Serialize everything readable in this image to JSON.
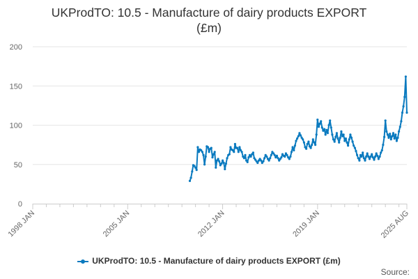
{
  "chart_data": {
    "type": "line",
    "title": "UKProdTO: 10.5 - Manufacture of dairy products EXPORT (£m)",
    "title_lines": [
      "UKProdTO: 10.5 - Manufacture of dairy products EXPORT",
      "(£m)"
    ],
    "x_ticks": [
      "1998 JAN",
      "2005 JAN",
      "2012 JAN",
      "2019 JAN",
      "2025 AUG"
    ],
    "xlim": [
      "1998-01",
      "2025-08"
    ],
    "ylim": [
      0,
      200
    ],
    "y_ticks": [
      0,
      50,
      100,
      150,
      200
    ],
    "grid": "horizontal",
    "legend_position": "bottom-center",
    "series": [
      {
        "name": "UKProdTO: 10.5 - Manufacture of dairy products EXPORT (£m)",
        "color": "#0a7abf",
        "points": [
          [
            "2009-08",
            29
          ],
          [
            "2009-09",
            33
          ],
          [
            "2009-10",
            41
          ],
          [
            "2009-11",
            49
          ],
          [
            "2009-12",
            48
          ],
          [
            "2010-01",
            46
          ],
          [
            "2010-02",
            43
          ],
          [
            "2010-03",
            72
          ],
          [
            "2010-04",
            66
          ],
          [
            "2010-05",
            69
          ],
          [
            "2010-06",
            68
          ],
          [
            "2010-07",
            66
          ],
          [
            "2010-08",
            62
          ],
          [
            "2010-09",
            50
          ],
          [
            "2010-10",
            60
          ],
          [
            "2010-11",
            73
          ],
          [
            "2010-12",
            72
          ],
          [
            "2011-01",
            66
          ],
          [
            "2011-02",
            70
          ],
          [
            "2011-03",
            71
          ],
          [
            "2011-04",
            59
          ],
          [
            "2011-05",
            63
          ],
          [
            "2011-06",
            66
          ],
          [
            "2011-07",
            46
          ],
          [
            "2011-08",
            55
          ],
          [
            "2011-09",
            57
          ],
          [
            "2011-10",
            54
          ],
          [
            "2011-11",
            49
          ],
          [
            "2011-12",
            51
          ],
          [
            "2012-01",
            55
          ],
          [
            "2012-02",
            52
          ],
          [
            "2012-03",
            44
          ],
          [
            "2012-04",
            51
          ],
          [
            "2012-05",
            58
          ],
          [
            "2012-06",
            62
          ],
          [
            "2012-07",
            63
          ],
          [
            "2012-08",
            72
          ],
          [
            "2012-09",
            69
          ],
          [
            "2012-10",
            68
          ],
          [
            "2012-11",
            66
          ],
          [
            "2012-12",
            76
          ],
          [
            "2013-01",
            71
          ],
          [
            "2013-02",
            71
          ],
          [
            "2013-03",
            66
          ],
          [
            "2013-04",
            72
          ],
          [
            "2013-05",
            68
          ],
          [
            "2013-06",
            66
          ],
          [
            "2013-07",
            60
          ],
          [
            "2013-08",
            58
          ],
          [
            "2013-09",
            62
          ],
          [
            "2013-10",
            55
          ],
          [
            "2013-11",
            53
          ],
          [
            "2013-12",
            59
          ],
          [
            "2014-01",
            62
          ],
          [
            "2014-02",
            60
          ],
          [
            "2014-03",
            63
          ],
          [
            "2014-04",
            65
          ],
          [
            "2014-05",
            58
          ],
          [
            "2014-06",
            56
          ],
          [
            "2014-07",
            54
          ],
          [
            "2014-08",
            52
          ],
          [
            "2014-09",
            55
          ],
          [
            "2014-10",
            57
          ],
          [
            "2014-11",
            55
          ],
          [
            "2014-12",
            52
          ],
          [
            "2015-01",
            54
          ],
          [
            "2015-02",
            58
          ],
          [
            "2015-03",
            62
          ],
          [
            "2015-04",
            60
          ],
          [
            "2015-05",
            57
          ],
          [
            "2015-06",
            55
          ],
          [
            "2015-07",
            58
          ],
          [
            "2015-08",
            62
          ],
          [
            "2015-09",
            66
          ],
          [
            "2015-10",
            64
          ],
          [
            "2015-11",
            62
          ],
          [
            "2015-12",
            59
          ],
          [
            "2016-01",
            61
          ],
          [
            "2016-02",
            58
          ],
          [
            "2016-03",
            55
          ],
          [
            "2016-04",
            57
          ],
          [
            "2016-05",
            59
          ],
          [
            "2016-06",
            63
          ],
          [
            "2016-07",
            61
          ],
          [
            "2016-08",
            60
          ],
          [
            "2016-09",
            64
          ],
          [
            "2016-10",
            62
          ],
          [
            "2016-11",
            59
          ],
          [
            "2016-12",
            57
          ],
          [
            "2017-01",
            60
          ],
          [
            "2017-02",
            66
          ],
          [
            "2017-03",
            72
          ],
          [
            "2017-04",
            68
          ],
          [
            "2017-05",
            74
          ],
          [
            "2017-06",
            80
          ],
          [
            "2017-07",
            83
          ],
          [
            "2017-08",
            86
          ],
          [
            "2017-09",
            90
          ],
          [
            "2017-10",
            87
          ],
          [
            "2017-11",
            84
          ],
          [
            "2017-12",
            82
          ],
          [
            "2018-01",
            78
          ],
          [
            "2018-02",
            72
          ],
          [
            "2018-03",
            70
          ],
          [
            "2018-04",
            76
          ],
          [
            "2018-05",
            79
          ],
          [
            "2018-06",
            73
          ],
          [
            "2018-07",
            71
          ],
          [
            "2018-08",
            75
          ],
          [
            "2018-09",
            82
          ],
          [
            "2018-10",
            78
          ],
          [
            "2018-11",
            75
          ],
          [
            "2018-12",
            88
          ],
          [
            "2019-01",
            107
          ],
          [
            "2019-02",
            98
          ],
          [
            "2019-03",
            102
          ],
          [
            "2019-04",
            105
          ],
          [
            "2019-05",
            97
          ],
          [
            "2019-06",
            93
          ],
          [
            "2019-07",
            95
          ],
          [
            "2019-08",
            88
          ],
          [
            "2019-09",
            94
          ],
          [
            "2019-10",
            90
          ],
          [
            "2019-11",
            100
          ],
          [
            "2019-12",
            106
          ],
          [
            "2020-01",
            97
          ],
          [
            "2020-02",
            88
          ],
          [
            "2020-03",
            82
          ],
          [
            "2020-04",
            79
          ],
          [
            "2020-05",
            85
          ],
          [
            "2020-06",
            90
          ],
          [
            "2020-07",
            83
          ],
          [
            "2020-08",
            78
          ],
          [
            "2020-09",
            84
          ],
          [
            "2020-10",
            92
          ],
          [
            "2020-11",
            86
          ],
          [
            "2020-12",
            88
          ],
          [
            "2021-01",
            80
          ],
          [
            "2021-02",
            83
          ],
          [
            "2021-03",
            78
          ],
          [
            "2021-04",
            74
          ],
          [
            "2021-05",
            82
          ],
          [
            "2021-06",
            88
          ],
          [
            "2021-07",
            84
          ],
          [
            "2021-08",
            79
          ],
          [
            "2021-09",
            74
          ],
          [
            "2021-10",
            71
          ],
          [
            "2021-11",
            67
          ],
          [
            "2021-12",
            62
          ],
          [
            "2022-01",
            58
          ],
          [
            "2022-02",
            55
          ],
          [
            "2022-03",
            62
          ],
          [
            "2022-04",
            60
          ],
          [
            "2022-05",
            65
          ],
          [
            "2022-06",
            58
          ],
          [
            "2022-07",
            55
          ],
          [
            "2022-08",
            60
          ],
          [
            "2022-09",
            64
          ],
          [
            "2022-10",
            60
          ],
          [
            "2022-11",
            57
          ],
          [
            "2022-12",
            60
          ],
          [
            "2023-01",
            63
          ],
          [
            "2023-02",
            59
          ],
          [
            "2023-03",
            56
          ],
          [
            "2023-04",
            60
          ],
          [
            "2023-05",
            64
          ],
          [
            "2023-06",
            61
          ],
          [
            "2023-07",
            57
          ],
          [
            "2023-08",
            60
          ],
          [
            "2023-09",
            65
          ],
          [
            "2023-10",
            68
          ],
          [
            "2023-11",
            75
          ],
          [
            "2023-12",
            85
          ],
          [
            "2024-01",
            106
          ],
          [
            "2024-02",
            92
          ],
          [
            "2024-03",
            88
          ],
          [
            "2024-04",
            84
          ],
          [
            "2024-05",
            89
          ],
          [
            "2024-06",
            82
          ],
          [
            "2024-07",
            86
          ],
          [
            "2024-08",
            90
          ],
          [
            "2024-09",
            83
          ],
          [
            "2024-10",
            88
          ],
          [
            "2024-11",
            80
          ],
          [
            "2024-12",
            84
          ],
          [
            "2025-01",
            92
          ],
          [
            "2025-02",
            98
          ],
          [
            "2025-03",
            105
          ],
          [
            "2025-04",
            116
          ],
          [
            "2025-05",
            124
          ],
          [
            "2025-06",
            136
          ],
          [
            "2025-07",
            162
          ],
          [
            "2025-08",
            116
          ]
        ]
      }
    ]
  },
  "credit": "Source:"
}
